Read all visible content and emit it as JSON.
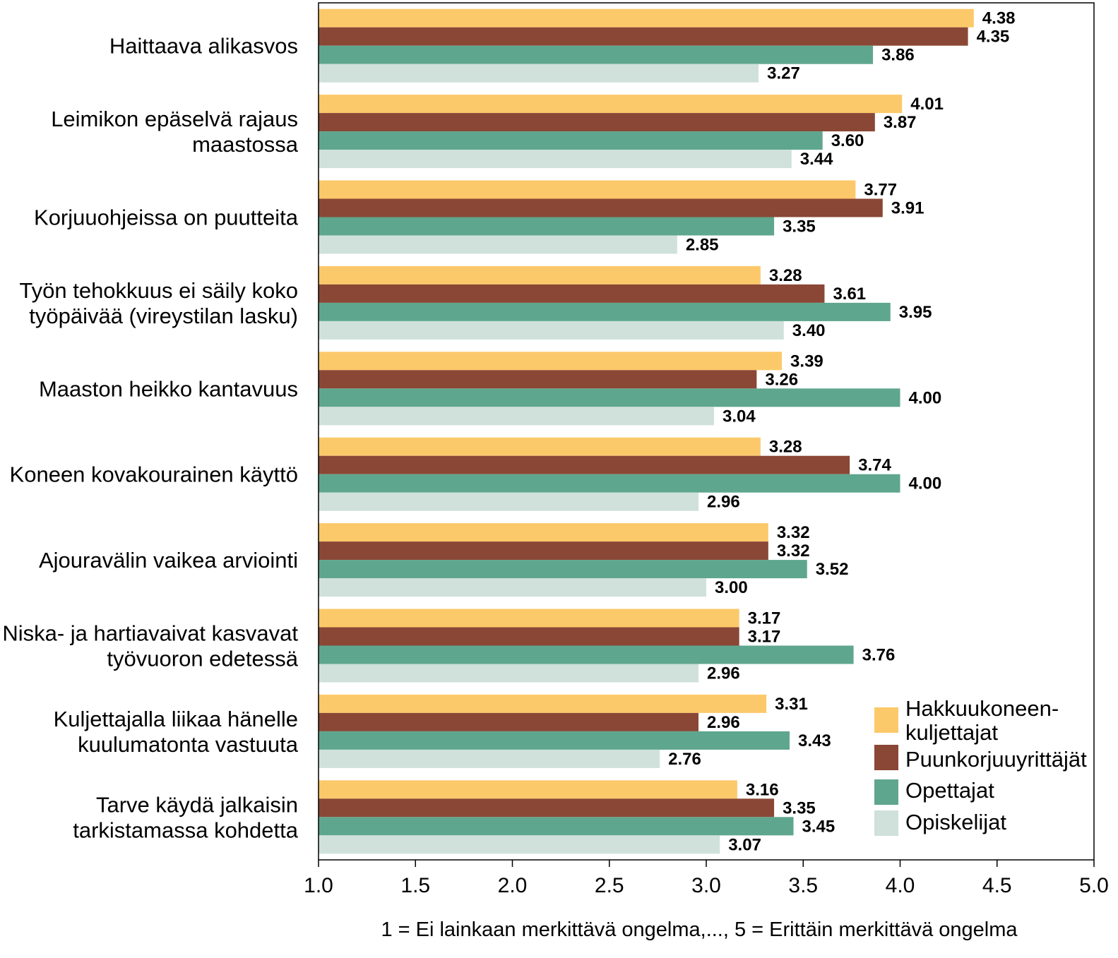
{
  "chart_data": {
    "type": "bar",
    "orientation": "horizontal",
    "categories": [
      [
        "Haittaava alikasvos"
      ],
      [
        "Leimikon epäselvä rajaus",
        "maastossa"
      ],
      [
        "Korjuuohjeissa on puutteita"
      ],
      [
        "Työn tehokkuus ei säily koko",
        "työpäivää (vireystilan lasku)"
      ],
      [
        "Maaston heikko kantavuus"
      ],
      [
        "Koneen kovakourainen käyttö"
      ],
      [
        "Ajouravälin vaikea arviointi"
      ],
      [
        "Niska- ja hartiavaivat kasvavat",
        "työvuoron edetessä"
      ],
      [
        "Kuljettajalla liikaa hänelle",
        "kuulumatonta vastuuta"
      ],
      [
        "Tarve käydä jalkaisin",
        "tarkistamassa kohdetta"
      ]
    ],
    "series": [
      {
        "name": [
          "Hakkuukoneen-",
          "kuljettajat"
        ],
        "color": "#fcc96a",
        "values": [
          4.38,
          4.01,
          3.77,
          3.28,
          3.39,
          3.28,
          3.32,
          3.17,
          3.31,
          3.16
        ],
        "labels": [
          "4.38",
          "4.01",
          "3.77",
          "3.28",
          "3.39",
          "3.28",
          "3.32",
          "3.17",
          "3.31",
          "3.16"
        ]
      },
      {
        "name": [
          "Puunkorjuuyrittäjät"
        ],
        "color": "#8a4735",
        "values": [
          4.35,
          3.87,
          3.91,
          3.61,
          3.26,
          3.74,
          3.32,
          3.17,
          2.96,
          3.35
        ],
        "labels": [
          "4.35",
          "3.87",
          "3.91",
          "3.61",
          "3.26",
          "3.74",
          "3.32",
          "3.17",
          "2.96",
          "3.35"
        ]
      },
      {
        "name": [
          "Opettajat"
        ],
        "color": "#5fa68e",
        "values": [
          3.86,
          3.6,
          3.35,
          3.95,
          4.0,
          4.0,
          3.52,
          3.76,
          3.43,
          3.45
        ],
        "labels": [
          "3.86",
          "3.60",
          "3.35",
          "3.95",
          "4.00",
          "4.00",
          "3.52",
          "3.76",
          "3.43",
          "3.45"
        ]
      },
      {
        "name": [
          "Opiskelijat"
        ],
        "color": "#cfe1da",
        "values": [
          3.27,
          3.44,
          2.85,
          3.4,
          3.04,
          2.96,
          3.0,
          2.96,
          2.76,
          3.07
        ],
        "labels": [
          "3.27",
          "3.44",
          "2.85",
          "3.40",
          "3.04",
          "2.96",
          "3.00",
          "2.96",
          "2.76",
          "3.07"
        ]
      }
    ],
    "xlim": [
      1.0,
      5.0
    ],
    "xticks": [
      "1.0",
      "1.5",
      "2.0",
      "2.5",
      "3.0",
      "3.5",
      "4.0",
      "4.5",
      "5.0"
    ],
    "xlabel": "1 = Ei lainkaan merkittävä ongelma,..., 5 = Erittäin merkittävä ongelma",
    "ylabel": "",
    "title": "",
    "legend": "bottom-right",
    "grid": false
  }
}
